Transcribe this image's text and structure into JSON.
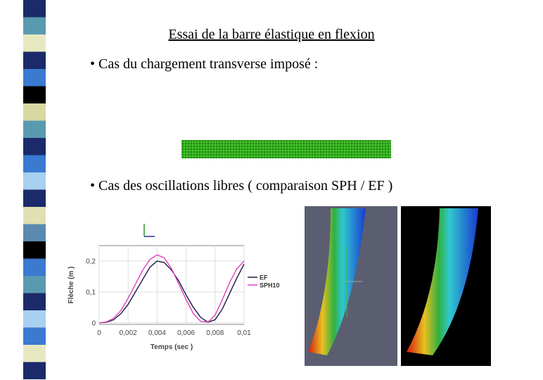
{
  "slide": {
    "title": "Essai de la barre élastique en flexion",
    "bullets": [
      "• Cas du chargement transverse imposé :",
      "• Cas des oscillations libres ( comparaison SPH / EF )"
    ]
  },
  "chart_data": {
    "type": "line",
    "x_label": "Temps (sec )",
    "y_label": "Flèche (m )",
    "x": [
      0,
      0.0005,
      0.001,
      0.0015,
      0.002,
      0.0025,
      0.003,
      0.0035,
      0.004,
      0.0045,
      0.005,
      0.0055,
      0.006,
      0.0065,
      0.007,
      0.0075,
      0.008,
      0.0085,
      0.009,
      0.0095,
      0.01
    ],
    "series": [
      {
        "name": "EF",
        "color": "#1a1a40",
        "values": [
          0,
          0.002,
          0.01,
          0.03,
          0.06,
          0.1,
          0.14,
          0.18,
          0.2,
          0.195,
          0.17,
          0.135,
          0.09,
          0.05,
          0.018,
          0.002,
          0.01,
          0.045,
          0.095,
          0.145,
          0.19
        ]
      },
      {
        "name": "SPH10",
        "color": "#e040c0",
        "values": [
          0,
          0.003,
          0.015,
          0.04,
          0.08,
          0.125,
          0.17,
          0.205,
          0.22,
          0.21,
          0.175,
          0.125,
          0.075,
          0.03,
          0.005,
          0.002,
          0.025,
          0.075,
          0.13,
          0.175,
          0.2
        ]
      }
    ],
    "xlim": [
      0,
      0.01
    ],
    "ylim": [
      -0.005,
      0.25
    ],
    "xticks": [
      0,
      {
        "value": 0.002,
        "label": "0,002"
      },
      {
        "value": 0.004,
        "label": "0,004"
      },
      {
        "value": 0.006,
        "label": "0,006"
      },
      {
        "value": 0.008,
        "label": "0,008"
      },
      {
        "value": 0.01,
        "label": "0,01"
      }
    ],
    "yticks": [
      0,
      {
        "value": 0.1,
        "label": "0,1"
      },
      {
        "value": 0.2,
        "label": "0,2"
      }
    ],
    "grid": true
  }
}
